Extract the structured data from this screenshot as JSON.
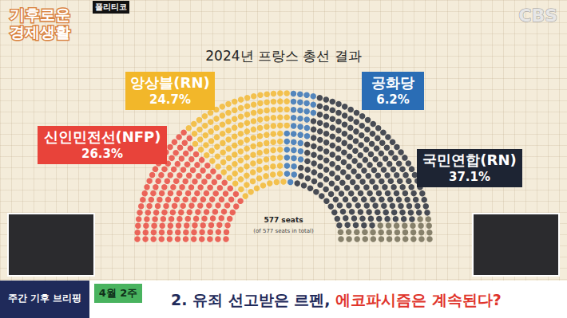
{
  "chart_data": {
    "type": "parliament",
    "title": "2024년 프랑스 총선 결과",
    "total": 577,
    "annotations": [
      "577 seats",
      "(of 577 seats in total)"
    ],
    "categories": [
      "신인민전선(NFP)",
      "앙상블(RN)",
      "공화당",
      "국민연합(RN)",
      null
    ],
    "values": [
      26.3,
      24.7,
      6.2,
      37.1,
      5.7
    ],
    "value_labels": [
      "26.3%",
      "24.7%",
      "6.2%",
      "37.1%",
      null
    ],
    "colors": [
      "#e8433a",
      "#f2b72a",
      "#2a6db5",
      "#1d2433",
      "#6b6650"
    ],
    "data_labels": true
  },
  "screen": {
    "logo": [
      "기후로운",
      "경제생활"
    ],
    "source_tag": "폴리티코",
    "channel": "CBS",
    "banner": {
      "section": "주간 기후 브리핑",
      "week": "4월 2주",
      "headline": [
        "2. 유죄 선고받은 르펜, ",
        "에코파시즘은 계속된다?"
      ]
    }
  }
}
